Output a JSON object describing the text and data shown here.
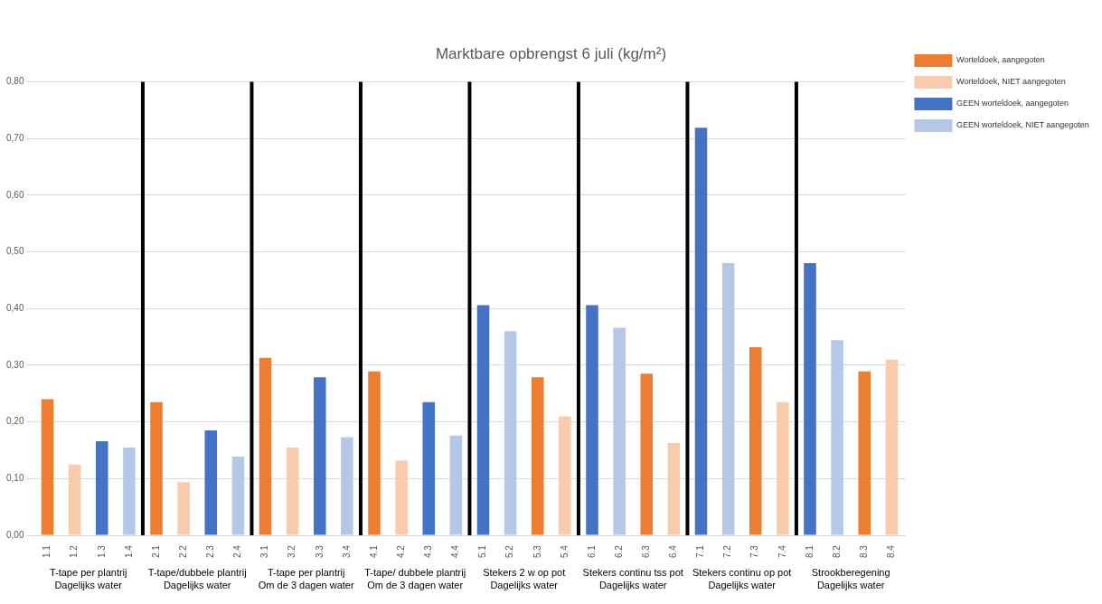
{
  "chart_data": {
    "type": "bar",
    "title": "Marktbare opbrengst 6 juli (kg/m²)",
    "categories": [
      "1.1",
      "1.2",
      "1.3",
      "1.4",
      "2.1",
      "2.2",
      "2.3",
      "2.4",
      "3.1",
      "3.2",
      "3.3",
      "3.4",
      "4.1",
      "4.2",
      "4.3",
      "4.4",
      "5.1",
      "5.2",
      "5.3",
      "5.4",
      "6.1",
      "6.2",
      "6.3",
      "6.4",
      "7.1",
      "7.2",
      "7.3",
      "7.4",
      "8.1",
      "8.2",
      "8.3",
      "8.4"
    ],
    "series": [
      {
        "name": "Worteldoek, aangegoten",
        "color": "#ed7d31",
        "values": [
          0.24,
          null,
          null,
          null,
          0.235,
          null,
          null,
          null,
          0.313,
          null,
          null,
          null,
          0.289,
          null,
          null,
          null,
          null,
          null,
          0.279,
          null,
          null,
          null,
          0.285,
          null,
          null,
          null,
          0.332,
          null,
          null,
          null,
          0.289,
          null
        ]
      },
      {
        "name": "Worteldoek, NIET aangegoten",
        "color": "#f8cbad",
        "values": [
          null,
          0.125,
          null,
          null,
          null,
          0.094,
          null,
          null,
          null,
          0.155,
          null,
          null,
          null,
          0.132,
          null,
          null,
          null,
          null,
          null,
          0.21,
          null,
          null,
          null,
          0.163,
          null,
          null,
          null,
          0.235,
          null,
          null,
          null,
          0.31
        ]
      },
      {
        "name": "GEEN worteldoek, aangegoten",
        "color": "#4472c4",
        "values": [
          null,
          null,
          0.166,
          null,
          null,
          null,
          0.185,
          null,
          null,
          null,
          0.279,
          null,
          null,
          null,
          0.235,
          null,
          0.406,
          null,
          null,
          null,
          0.406,
          null,
          null,
          null,
          0.719,
          null,
          null,
          null,
          0.48,
          null,
          null,
          null
        ]
      },
      {
        "name": "GEEN worteldoek, NIET aangegoten",
        "color": "#b4c7e7",
        "values": [
          null,
          null,
          null,
          0.155,
          null,
          null,
          null,
          0.139,
          null,
          null,
          null,
          0.173,
          null,
          null,
          null,
          0.176,
          null,
          0.36,
          null,
          null,
          null,
          0.366,
          null,
          null,
          null,
          0.48,
          null,
          null,
          null,
          0.344,
          null,
          null
        ]
      }
    ],
    "ylim": [
      0,
      0.8
    ],
    "yticks": [
      {
        "value": 0,
        "label": "0,00"
      },
      {
        "value": 0.1,
        "label": "0,10"
      },
      {
        "value": 0.2,
        "label": "0,20"
      },
      {
        "value": 0.3,
        "label": "0,30"
      },
      {
        "value": 0.4,
        "label": "0,40"
      },
      {
        "value": 0.5,
        "label": "0,50"
      },
      {
        "value": 0.6,
        "label": "0,60"
      },
      {
        "value": 0.7,
        "label": "0,70"
      },
      {
        "value": 0.8,
        "label": "0,80"
      }
    ],
    "annotations": [
      "T-tape per plantrij\nDagelijks water",
      "T-tape/dubbele plantrij\nDagelijks water",
      "T-tape per plantrij\nOm de 3 dagen water",
      "T-tape/ dubbele plantrij\nOm de 3 dagen water",
      "Stekers 2 w op pot\nDagelijks water",
      "Stekers continu tss pot\nDagelijks water",
      "Stekers continu op pot\nDagelijks water",
      "Strookberegening\nDagelijks water"
    ],
    "grid": "y",
    "legend": "top right"
  }
}
